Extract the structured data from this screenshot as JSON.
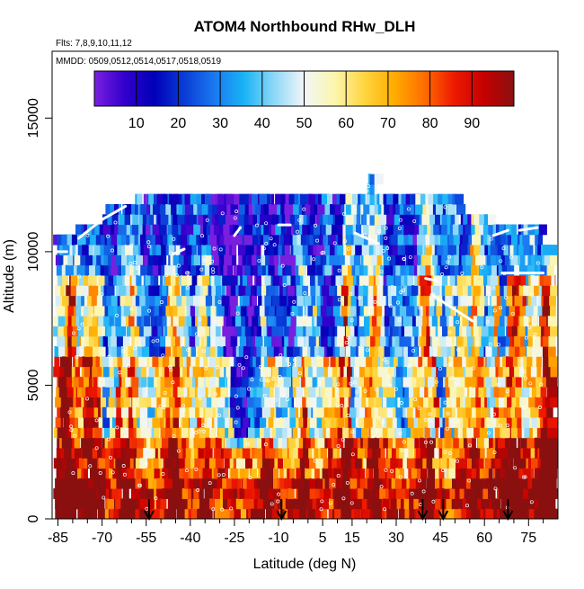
{
  "chart_data": {
    "type": "heatmap",
    "title": "ATOM4 Northbound RHw_DLH",
    "subtitle": "Flts: 7,8,9,10,11,12",
    "annotation": "MMDD: 0509,0512,0514,0517,0518,0519",
    "xlabel": "Latitude (deg N)",
    "ylabel": "Altitude (m)",
    "xlim": [
      -87,
      85
    ],
    "ylim": [
      0,
      17500
    ],
    "x_ticks": [
      -85,
      -70,
      -55,
      -40,
      -25,
      -10,
      5,
      15,
      30,
      45,
      60,
      75
    ],
    "y_ticks": [
      0,
      5000,
      10000,
      15000
    ],
    "colorbar": {
      "range": [
        0,
        100
      ],
      "ticks": [
        10,
        20,
        30,
        40,
        50,
        60,
        70,
        80,
        90
      ],
      "colors": [
        "#7a1fe0",
        "#3300cc",
        "#0000b8",
        "#0a3cd6",
        "#1a78f0",
        "#19b4f5",
        "#8fd8f7",
        "#f2f6f8",
        "#fbf6b0",
        "#ffd640",
        "#ffac00",
        "#ff6e00",
        "#ee1a00",
        "#c40000",
        "#8a1010"
      ]
    },
    "flight_arrows_lat": [
      -54,
      -9,
      39,
      46,
      68
    ],
    "coverage": {
      "lat_min": -86,
      "lat_max": 83,
      "alt_max_typical": 11000,
      "alt_max_peak": 12800
    },
    "pattern": {
      "surface_rhw": "70-95 (humid boundary layer, orange-red)",
      "mid_troposphere_tropics_rhw": "5-30 (dry, blue-purple)",
      "upper_troposphere_rhw": "5-25 (dry, purple-blue)",
      "high_latitude_rhw": "30-70"
    }
  }
}
